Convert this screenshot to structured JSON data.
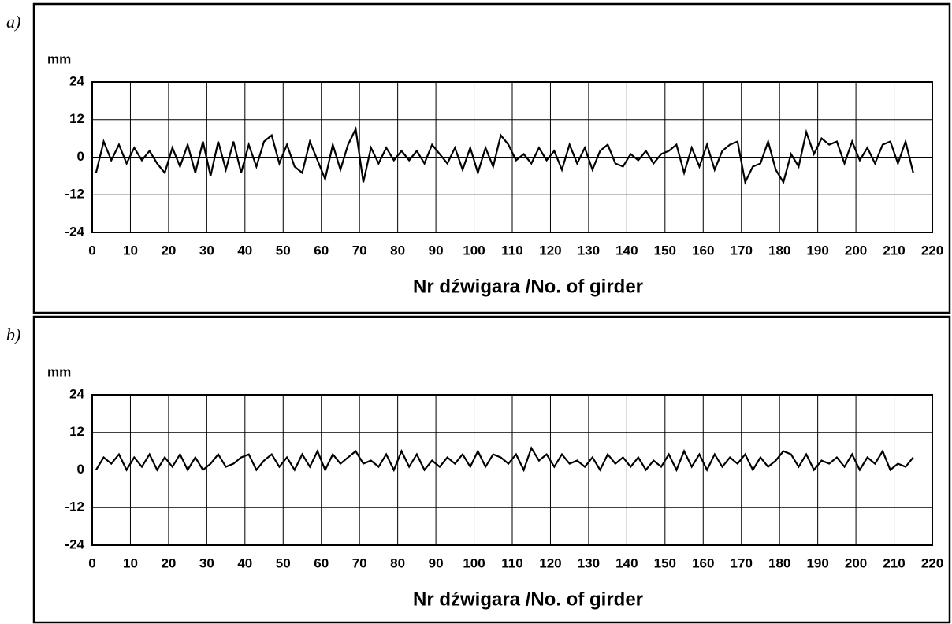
{
  "chart_data": [
    {
      "type": "line",
      "panel_label": "a)",
      "ylabel": "mm",
      "xlabel": "Nr dźwigara /No. of girder",
      "color": "#000000",
      "grid": true,
      "xlim": [
        0,
        220
      ],
      "xticks": [
        0,
        10,
        20,
        30,
        40,
        50,
        60,
        70,
        80,
        90,
        100,
        110,
        120,
        130,
        140,
        150,
        160,
        170,
        180,
        190,
        200,
        210,
        220
      ],
      "ylim": [
        -24,
        24
      ],
      "yticks": [
        -24,
        -12,
        0,
        12,
        24
      ],
      "x": [
        1,
        3,
        5,
        7,
        9,
        11,
        13,
        15,
        17,
        19,
        21,
        23,
        25,
        27,
        29,
        31,
        33,
        35,
        37,
        39,
        41,
        43,
        45,
        47,
        49,
        51,
        53,
        55,
        57,
        59,
        61,
        63,
        65,
        67,
        69,
        71,
        73,
        75,
        77,
        79,
        81,
        83,
        85,
        87,
        89,
        91,
        93,
        95,
        97,
        99,
        101,
        103,
        105,
        107,
        109,
        111,
        113,
        115,
        117,
        119,
        121,
        123,
        125,
        127,
        129,
        131,
        133,
        135,
        137,
        139,
        141,
        143,
        145,
        147,
        149,
        151,
        153,
        155,
        157,
        159,
        161,
        163,
        165,
        167,
        169,
        171,
        173,
        175,
        177,
        179,
        181,
        183,
        185,
        187,
        189,
        191,
        193,
        195,
        197,
        199,
        201,
        203,
        205,
        207,
        209,
        211,
        213,
        215
      ],
      "values": [
        -5,
        5,
        -1,
        4,
        -2,
        3,
        -1,
        2,
        -2,
        -5,
        3,
        -3,
        4,
        -5,
        5,
        -6,
        5,
        -4,
        5,
        -5,
        4,
        -3,
        5,
        7,
        -2,
        4,
        -3,
        -5,
        5,
        -1,
        -7,
        4,
        -4,
        4,
        9,
        -8,
        3,
        -2,
        3,
        -1,
        2,
        -1,
        2,
        -2,
        4,
        1,
        -2,
        3,
        -4,
        3,
        -5,
        3,
        -3,
        7,
        4,
        -1,
        1,
        -2,
        3,
        -1,
        2,
        -4,
        4,
        -2,
        3,
        -4,
        2,
        4,
        -2,
        -3,
        1,
        -1,
        2,
        -2,
        1,
        2,
        4,
        -5,
        3,
        -3,
        4,
        -4,
        2,
        4,
        5,
        -8,
        -3,
        -2,
        5,
        -4,
        -8,
        1,
        -3,
        8,
        1,
        6,
        4,
        5,
        -2,
        5,
        -1,
        3,
        -2,
        4,
        5,
        -2,
        5,
        -5
      ]
    },
    {
      "type": "line",
      "panel_label": "b)",
      "ylabel": "mm",
      "xlabel": "Nr dźwigara /No. of girder",
      "color": "#000000",
      "grid": true,
      "xlim": [
        0,
        220
      ],
      "xticks": [
        0,
        10,
        20,
        30,
        40,
        50,
        60,
        70,
        80,
        90,
        100,
        110,
        120,
        130,
        140,
        150,
        160,
        170,
        180,
        190,
        200,
        210,
        220
      ],
      "ylim": [
        -24,
        24
      ],
      "yticks": [
        -24,
        -12,
        0,
        12,
        24
      ],
      "x": [
        1,
        3,
        5,
        7,
        9,
        11,
        13,
        15,
        17,
        19,
        21,
        23,
        25,
        27,
        29,
        31,
        33,
        35,
        37,
        39,
        41,
        43,
        45,
        47,
        49,
        51,
        53,
        55,
        57,
        59,
        61,
        63,
        65,
        67,
        69,
        71,
        73,
        75,
        77,
        79,
        81,
        83,
        85,
        87,
        89,
        91,
        93,
        95,
        97,
        99,
        101,
        103,
        105,
        107,
        109,
        111,
        113,
        115,
        117,
        119,
        121,
        123,
        125,
        127,
        129,
        131,
        133,
        135,
        137,
        139,
        141,
        143,
        145,
        147,
        149,
        151,
        153,
        155,
        157,
        159,
        161,
        163,
        165,
        167,
        169,
        171,
        173,
        175,
        177,
        179,
        181,
        183,
        185,
        187,
        189,
        191,
        193,
        195,
        197,
        199,
        201,
        203,
        205,
        207,
        209,
        211,
        213,
        215
      ],
      "values": [
        0,
        4,
        2,
        5,
        0,
        4,
        1,
        5,
        0,
        4,
        1,
        5,
        0,
        4,
        0,
        2,
        5,
        1,
        2,
        4,
        5,
        0,
        3,
        5,
        1,
        4,
        0,
        5,
        1,
        6,
        0,
        5,
        2,
        4,
        6,
        2,
        3,
        1,
        5,
        0,
        6,
        1,
        5,
        0,
        3,
        1,
        4,
        2,
        5,
        1,
        6,
        1,
        5,
        4,
        2,
        5,
        0,
        7,
        3,
        5,
        1,
        5,
        2,
        3,
        1,
        4,
        0,
        5,
        2,
        4,
        1,
        4,
        0,
        3,
        1,
        5,
        0,
        6,
        1,
        5,
        0,
        5,
        1,
        4,
        2,
        5,
        0,
        4,
        1,
        3,
        6,
        5,
        1,
        5,
        0,
        3,
        2,
        4,
        1,
        5,
        0,
        4,
        2,
        6,
        0,
        2,
        1,
        4
      ]
    }
  ]
}
